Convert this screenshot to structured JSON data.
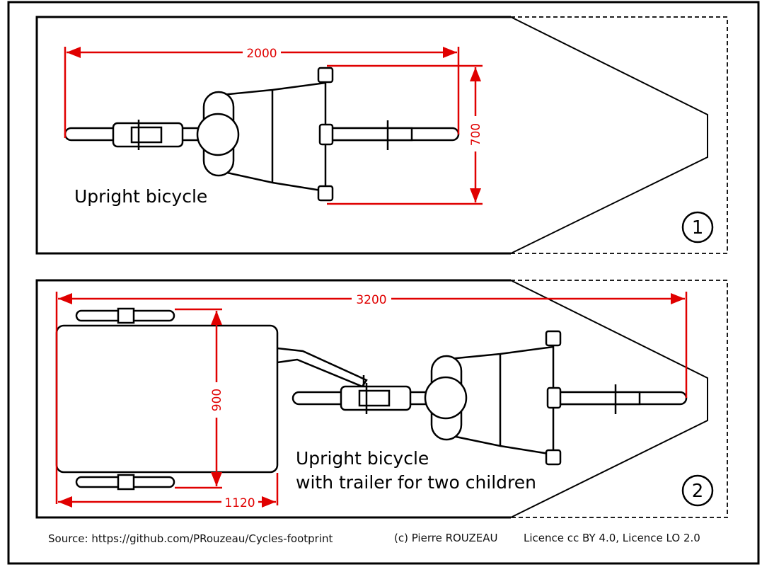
{
  "panel1": {
    "label": "Upright bicycle",
    "number": "1",
    "dim_length": "2000",
    "dim_width": "700"
  },
  "panel2": {
    "label_line1": "Upright bicycle",
    "label_line2": "with trailer for two children",
    "number": "2",
    "dim_total_length": "3200",
    "dim_trailer_width": "900",
    "dim_trailer_length": "1120"
  },
  "footer": {
    "source": "Source: https://github.com/PRouzeau/Cycles-footprint",
    "copyright": "(c) Pierre ROUZEAU",
    "licence": "Licence cc BY 4.0,  Licence LO 2.0"
  },
  "colors": {
    "dimension": "#e00000",
    "outline": "#000000"
  }
}
